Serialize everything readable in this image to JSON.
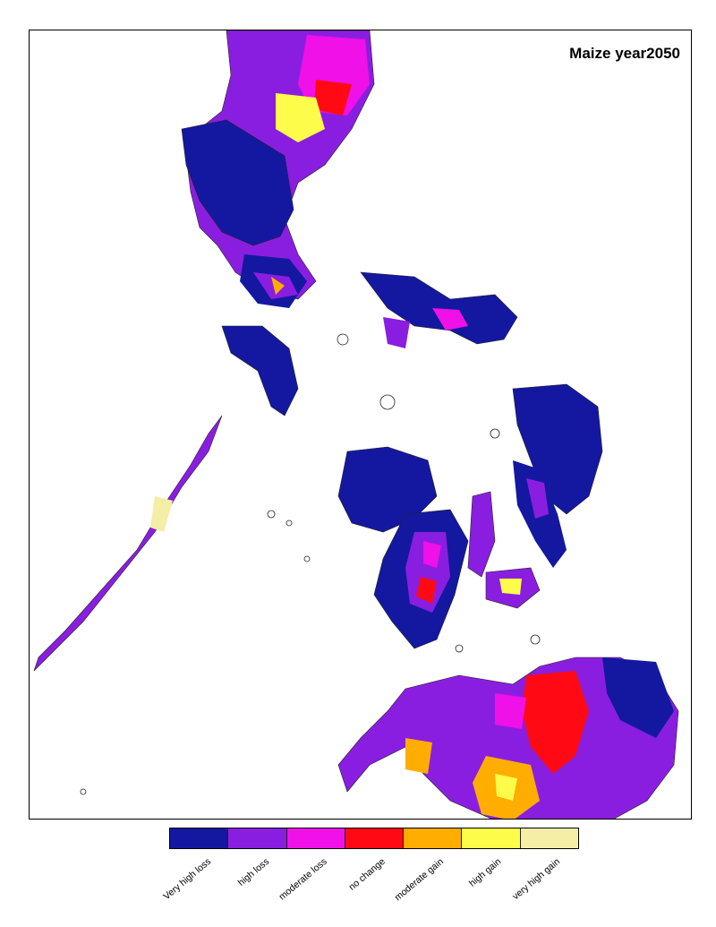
{
  "title": "Maize year2050",
  "legend": {
    "items": [
      {
        "label": "Very high loss",
        "color": "#1418a0"
      },
      {
        "label": "high loss",
        "color": "#8a1ee0"
      },
      {
        "label": "moderate loss",
        "color": "#f010e8"
      },
      {
        "label": "no change",
        "color": "#ff0a14"
      },
      {
        "label": "moderate gain",
        "color": "#ffad00"
      },
      {
        "label": "high gain",
        "color": "#fdfc4a"
      },
      {
        "label": "very high gain",
        "color": "#f4eea6"
      }
    ]
  }
}
